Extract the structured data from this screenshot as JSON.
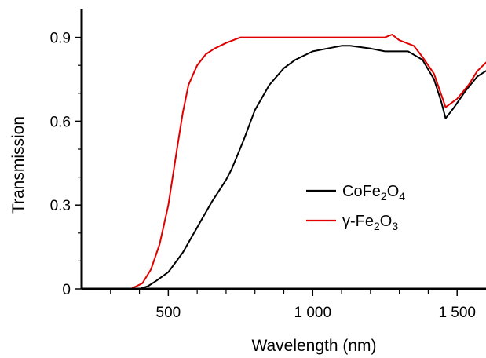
{
  "chart_data": {
    "type": "line",
    "title": "",
    "xlabel": "Wavelength (nm)",
    "ylabel": "Transmission",
    "xlim": [
      200,
      1600
    ],
    "ylim": [
      0,
      1.0
    ],
    "x_ticks": [
      {
        "value": 500,
        "label": "500"
      },
      {
        "value": 1000,
        "label": "1 000"
      },
      {
        "value": 1500,
        "label": "1 500"
      }
    ],
    "x_minor_ticks": [
      300,
      400,
      600,
      700,
      800,
      900,
      1100,
      1200,
      1300,
      1400
    ],
    "y_ticks": [
      {
        "value": 0,
        "label": "0"
      },
      {
        "value": 0.3,
        "label": "0.3"
      },
      {
        "value": 0.6,
        "label": "0.6"
      },
      {
        "value": 0.9,
        "label": "0.9"
      }
    ],
    "y_minor_ticks": [
      0.1,
      0.2,
      0.4,
      0.5,
      0.7,
      0.8
    ],
    "grid": false,
    "legend_position": "center-right",
    "series": [
      {
        "name": "CoFe2O4",
        "legend_parts": [
          {
            "text": "CoFe",
            "sub": false
          },
          {
            "text": "2",
            "sub": true
          },
          {
            "text": "O",
            "sub": false
          },
          {
            "text": "4",
            "sub": true
          }
        ],
        "color": "#000000",
        "points": [
          [
            340,
            0.0
          ],
          [
            400,
            0.0
          ],
          [
            430,
            0.01
          ],
          [
            460,
            0.03
          ],
          [
            500,
            0.06
          ],
          [
            550,
            0.13
          ],
          [
            600,
            0.22
          ],
          [
            650,
            0.31
          ],
          [
            700,
            0.39
          ],
          [
            720,
            0.43
          ],
          [
            760,
            0.53
          ],
          [
            800,
            0.64
          ],
          [
            850,
            0.73
          ],
          [
            900,
            0.79
          ],
          [
            940,
            0.82
          ],
          [
            1000,
            0.85
          ],
          [
            1050,
            0.86
          ],
          [
            1100,
            0.87
          ],
          [
            1130,
            0.87
          ],
          [
            1200,
            0.86
          ],
          [
            1250,
            0.85
          ],
          [
            1330,
            0.85
          ],
          [
            1380,
            0.82
          ],
          [
            1420,
            0.75
          ],
          [
            1445,
            0.67
          ],
          [
            1460,
            0.61
          ],
          [
            1490,
            0.65
          ],
          [
            1530,
            0.71
          ],
          [
            1570,
            0.76
          ],
          [
            1600,
            0.78
          ]
        ]
      },
      {
        "name": "γ-Fe2O3",
        "legend_parts": [
          {
            "text": "γ-Fe",
            "sub": false
          },
          {
            "text": "2",
            "sub": true
          },
          {
            "text": "O",
            "sub": false
          },
          {
            "text": "3",
            "sub": true
          }
        ],
        "color": "#e00000",
        "points": [
          [
            330,
            0.0
          ],
          [
            370,
            0.0
          ],
          [
            410,
            0.02
          ],
          [
            440,
            0.07
          ],
          [
            470,
            0.16
          ],
          [
            500,
            0.3
          ],
          [
            530,
            0.5
          ],
          [
            550,
            0.63
          ],
          [
            570,
            0.73
          ],
          [
            600,
            0.8
          ],
          [
            630,
            0.84
          ],
          [
            660,
            0.86
          ],
          [
            700,
            0.88
          ],
          [
            750,
            0.9
          ],
          [
            800,
            0.9
          ],
          [
            850,
            0.9
          ],
          [
            900,
            0.9
          ],
          [
            950,
            0.9
          ],
          [
            1000,
            0.9
          ],
          [
            1050,
            0.9
          ],
          [
            1100,
            0.9
          ],
          [
            1150,
            0.9
          ],
          [
            1200,
            0.9
          ],
          [
            1250,
            0.9
          ],
          [
            1275,
            0.91
          ],
          [
            1300,
            0.89
          ],
          [
            1350,
            0.87
          ],
          [
            1380,
            0.83
          ],
          [
            1420,
            0.77
          ],
          [
            1460,
            0.65
          ],
          [
            1500,
            0.68
          ],
          [
            1540,
            0.73
          ],
          [
            1570,
            0.78
          ],
          [
            1600,
            0.81
          ]
        ]
      }
    ]
  }
}
